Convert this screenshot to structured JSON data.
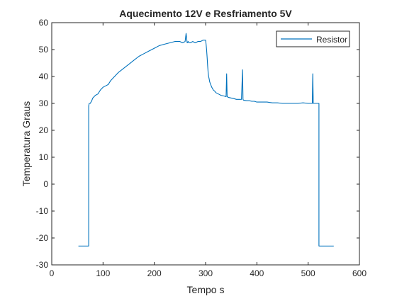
{
  "chart_data": {
    "type": "line",
    "title": "Aquecimento 12V e Resfriamento 5V",
    "xlabel": "Tempo s",
    "ylabel": "Temperatura Graus",
    "xlim": [
      0,
      600
    ],
    "ylim": [
      -30,
      60
    ],
    "xticks": [
      0,
      100,
      200,
      300,
      400,
      500,
      600
    ],
    "yticks": [
      -30,
      -20,
      -10,
      0,
      10,
      20,
      30,
      40,
      50,
      60
    ],
    "grid": false,
    "legend_position": "top-right",
    "series": [
      {
        "name": "Resistor",
        "color": "#0072BD",
        "x": [
          52,
          60,
          70,
          72,
          72,
          73,
          75,
          78,
          80,
          85,
          90,
          95,
          100,
          105,
          110,
          115,
          120,
          125,
          130,
          140,
          150,
          160,
          170,
          180,
          190,
          200,
          210,
          220,
          230,
          240,
          250,
          255,
          260,
          262,
          264,
          266,
          268,
          270,
          275,
          280,
          285,
          290,
          295,
          300,
          301,
          302,
          303,
          304,
          305,
          306,
          307,
          308,
          310,
          312,
          315,
          318,
          320,
          325,
          330,
          335,
          340,
          341,
          342,
          345,
          350,
          355,
          360,
          370,
          372,
          373,
          374,
          380,
          385,
          390,
          395,
          400,
          410,
          420,
          430,
          440,
          450,
          460,
          470,
          480,
          490,
          500,
          505,
          508,
          509,
          510,
          515,
          520,
          521,
          521,
          525,
          535,
          550
        ],
        "y": [
          -23,
          -23,
          -23,
          -23,
          29,
          30,
          30,
          31,
          32,
          33,
          33.5,
          35,
          36,
          36.5,
          37,
          38.5,
          39.5,
          40.5,
          41.5,
          43,
          44.5,
          46,
          47.5,
          48.5,
          49.5,
          50.5,
          51.5,
          52,
          52.5,
          53,
          53,
          52.5,
          53,
          56,
          52.5,
          53,
          52.5,
          52.5,
          53,
          52.5,
          53,
          53,
          53.5,
          53.5,
          52,
          50,
          47,
          44,
          41.5,
          40,
          39,
          38,
          37,
          36,
          35,
          34.5,
          34,
          33.5,
          33,
          32.8,
          32.5,
          41,
          32.5,
          32.2,
          32,
          31.8,
          31.5,
          31.5,
          42.5,
          31.5,
          31.2,
          31,
          31,
          30.8,
          30.8,
          30.5,
          30.5,
          30.5,
          30.2,
          30.2,
          30,
          30,
          30,
          30,
          30.2,
          30,
          30,
          30,
          41,
          30,
          30,
          30,
          30,
          -23,
          -23,
          -23,
          -23
        ]
      }
    ]
  }
}
